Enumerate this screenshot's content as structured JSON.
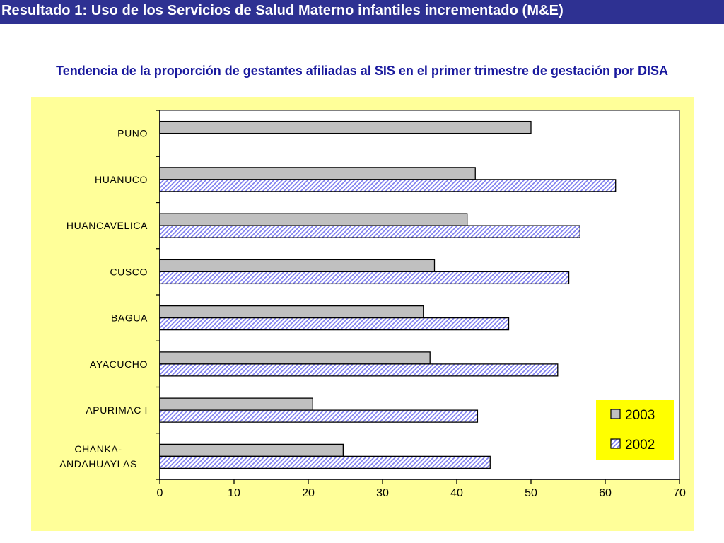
{
  "header": {
    "title": "Resultado 1: Uso de los Servicios de Salud Materno infantiles incrementado (M&E)"
  },
  "chart_data": {
    "type": "bar",
    "orientation": "horizontal",
    "title": "Tendencia de la proporción de gestantes afiliadas al SIS en el primer trimestre de gestación por DISA",
    "xlabel": "",
    "ylabel": "",
    "xlim": [
      0,
      70
    ],
    "xticks": [
      0,
      10,
      20,
      30,
      40,
      50,
      60,
      70
    ],
    "grid": false,
    "legend_position": "bottom-right",
    "categories": [
      "PUNO",
      "HUANUCO",
      "HUANCAVELICA",
      "CUSCO",
      "BAGUA",
      "AYACUCHO",
      "APURIMAC I",
      "CHANKA-ANDAHUAYLAS"
    ],
    "category_labels": [
      [
        "PUNO"
      ],
      [
        "HUANUCO"
      ],
      [
        "HUANCAVELICA"
      ],
      [
        "CUSCO"
      ],
      [
        "BAGUA"
      ],
      [
        "AYACUCHO"
      ],
      [
        "APURIMAC I"
      ],
      [
        "CHANKA-",
        "ANDAHUAYLAS"
      ]
    ],
    "series": [
      {
        "name": "2003",
        "color": "#c0c0c0",
        "pattern": "solid",
        "values": [
          50.0,
          42.5,
          41.4,
          37.0,
          35.5,
          36.4,
          20.6,
          24.7
        ]
      },
      {
        "name": "2002",
        "color": "#9999ff",
        "pattern": "diagonal-hatch",
        "values": [
          null,
          61.4,
          56.6,
          55.1,
          47.0,
          53.6,
          42.8,
          44.5
        ]
      }
    ],
    "colors": {
      "panel": "#ffff99",
      "legend_bg": "#ffff00",
      "header": "#2e3192",
      "title": "#1a1a9e"
    }
  }
}
